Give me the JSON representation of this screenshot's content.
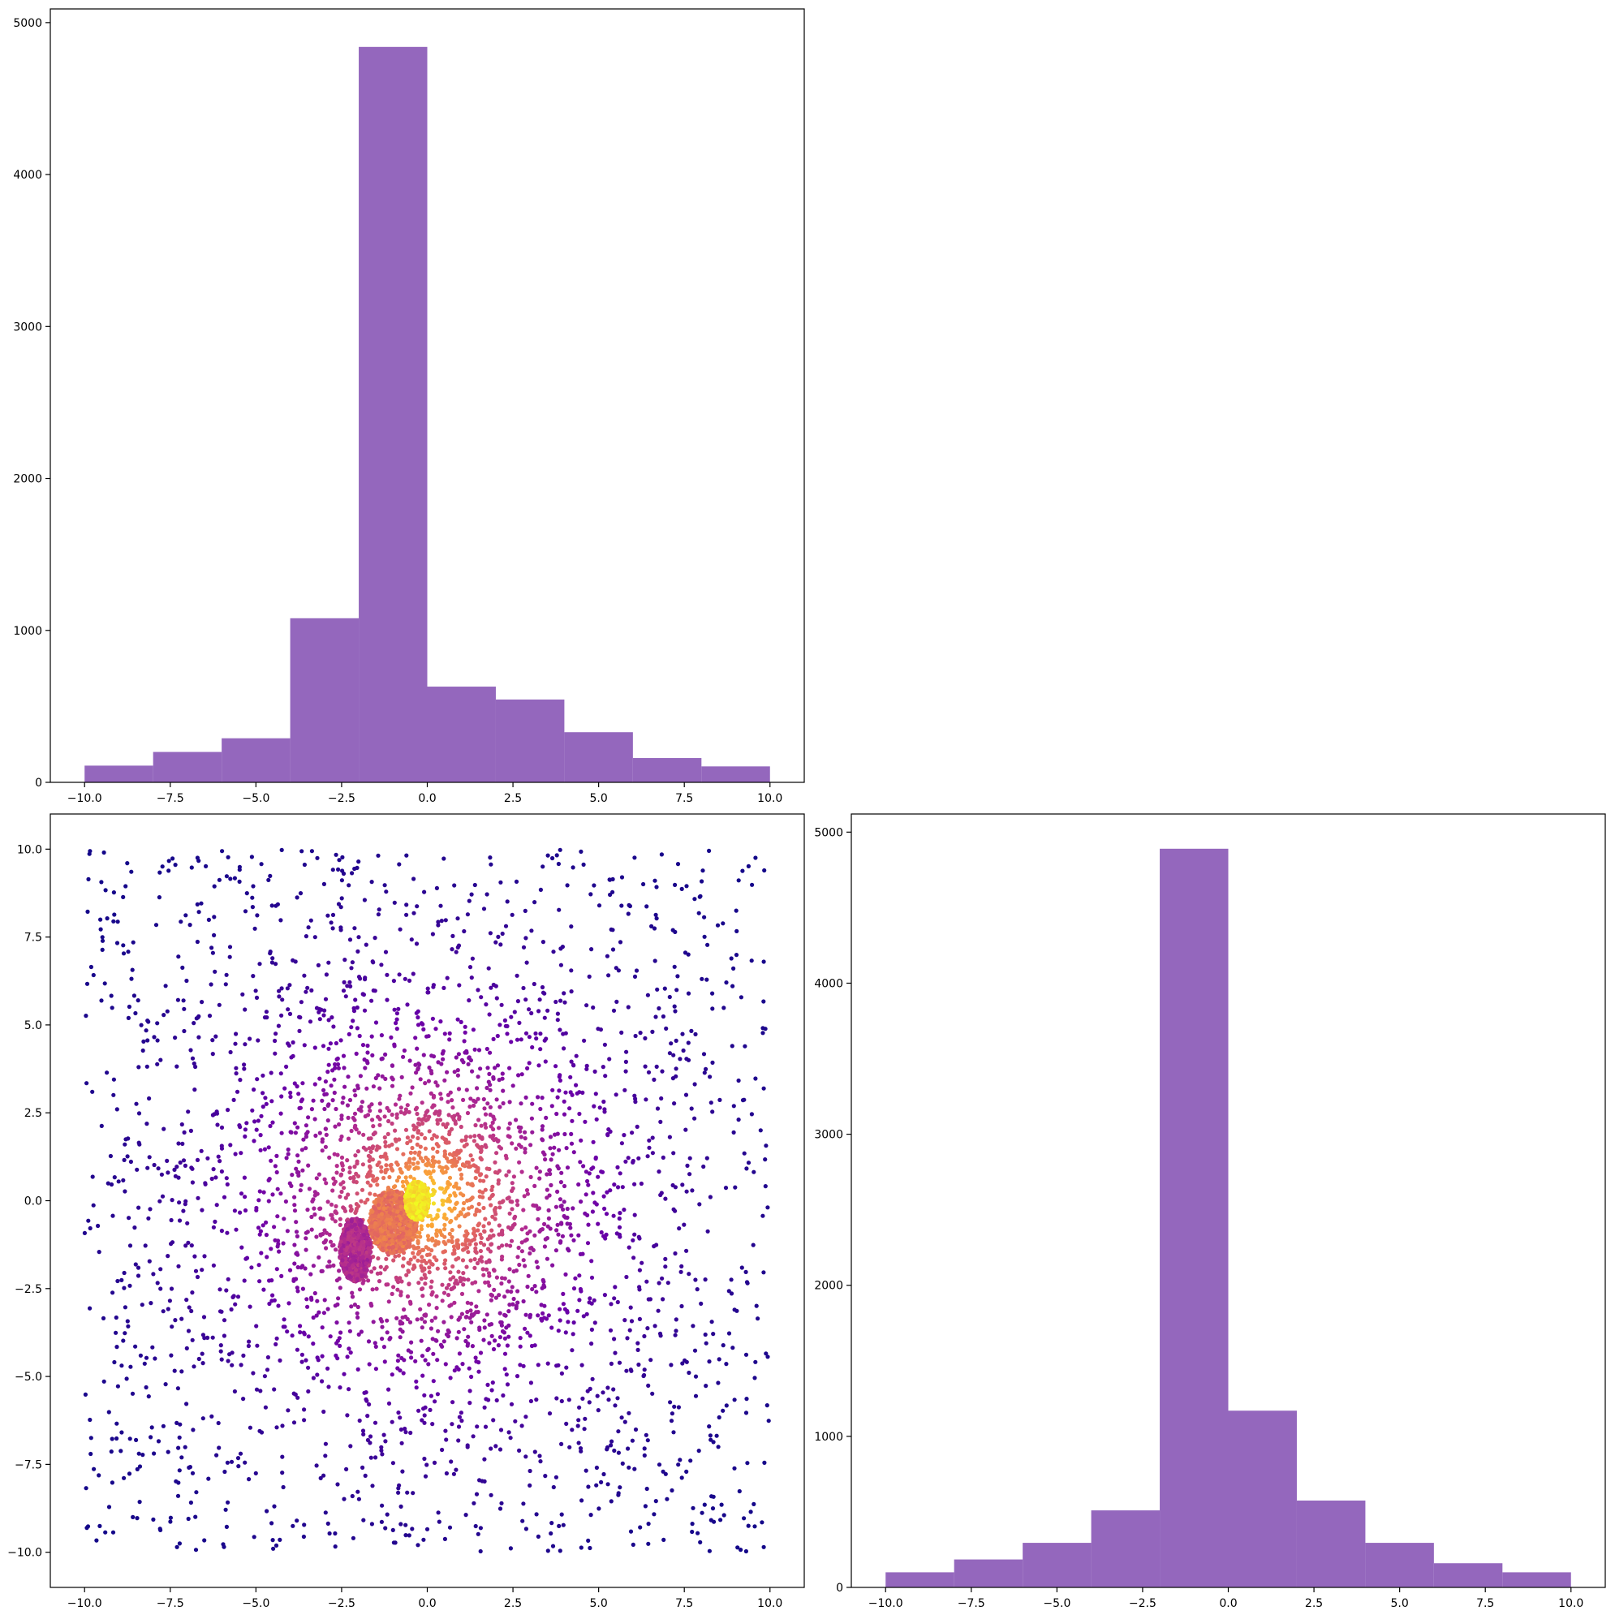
{
  "chart_data": [
    {
      "panel": "top-left",
      "type": "bar",
      "title": "",
      "xlabel": "",
      "ylabel": "",
      "bin_edges": [
        -10.0,
        -8.0,
        -6.0,
        -4.0,
        -2.0,
        0.0,
        2.0,
        4.0,
        6.0,
        8.0,
        10.0
      ],
      "values": [
        110,
        200,
        290,
        1080,
        4840,
        630,
        545,
        330,
        160,
        105
      ],
      "xlim": [
        -11.0,
        11.0
      ],
      "ylim": [
        0,
        5090
      ],
      "xticks": [
        "−10.0",
        "−7.5",
        "−5.0",
        "−2.5",
        "0.0",
        "2.5",
        "5.0",
        "7.5",
        "10.0"
      ],
      "xtick_values": [
        -10.0,
        -7.5,
        -5.0,
        -2.5,
        0.0,
        2.5,
        5.0,
        7.5,
        10.0
      ],
      "yticks": [
        "0",
        "1000",
        "2000",
        "3000",
        "4000",
        "5000"
      ],
      "ytick_values": [
        0,
        1000,
        2000,
        3000,
        4000,
        5000
      ],
      "color": "#9467bd",
      "grid": false
    },
    {
      "panel": "bottom-left",
      "type": "scatter",
      "title": "",
      "xlabel": "",
      "ylabel": "",
      "xlim": [
        -11.0,
        11.0
      ],
      "ylim": [
        -11.0,
        11.0
      ],
      "xticks": [
        "−10.0",
        "−7.5",
        "−5.0",
        "−2.5",
        "0.0",
        "2.5",
        "5.0",
        "7.5",
        "10.0"
      ],
      "xtick_values": [
        -10.0,
        -7.5,
        -5.0,
        -2.5,
        0.0,
        2.5,
        5.0,
        7.5,
        10.0
      ],
      "yticks": [
        "−10.0",
        "−7.5",
        "−5.0",
        "−2.5",
        "0.0",
        "2.5",
        "5.0",
        "7.5",
        "10.0"
      ],
      "ytick_values": [
        -10.0,
        -7.5,
        -5.0,
        -2.5,
        0.0,
        2.5,
        5.0,
        7.5,
        10.0
      ],
      "colormap": "plasma",
      "colors": [
        "#0d0887",
        "#6a00a8",
        "#b12a90",
        "#e16462",
        "#fca636",
        "#f0f921"
      ],
      "point_count_approx": 10000,
      "background_extent": [
        -10.0,
        10.0
      ],
      "clusters": [
        {
          "center": [
            -2.1,
            -1.4
          ],
          "extent": [
            0.45,
            0.9
          ],
          "color_value": 0.4
        },
        {
          "center": [
            -1.0,
            -0.6
          ],
          "extent": [
            0.7,
            0.9
          ],
          "color_value": 0.65
        },
        {
          "center": [
            -0.3,
            0.0
          ],
          "extent": [
            0.35,
            0.55
          ],
          "color_value": 0.95
        }
      ],
      "grid": false
    },
    {
      "panel": "bottom-right",
      "type": "bar",
      "title": "",
      "xlabel": "",
      "ylabel": "",
      "bin_edges": [
        -10.0,
        -8.0,
        -6.0,
        -4.0,
        -2.0,
        0.0,
        2.0,
        4.0,
        6.0,
        8.0,
        10.0
      ],
      "values": [
        100,
        185,
        295,
        510,
        4890,
        1170,
        575,
        295,
        160,
        100
      ],
      "xlim": [
        -11.0,
        11.0
      ],
      "ylim": [
        0,
        5120
      ],
      "xticks": [
        "−10.0",
        "−7.5",
        "−5.0",
        "−2.5",
        "0.0",
        "2.5",
        "5.0",
        "7.5",
        "10.0"
      ],
      "xtick_values": [
        -10.0,
        -7.5,
        -5.0,
        -2.5,
        0.0,
        2.5,
        5.0,
        7.5,
        10.0
      ],
      "yticks": [
        "0",
        "1000",
        "2000",
        "3000",
        "4000",
        "5000"
      ],
      "ytick_values": [
        0,
        1000,
        2000,
        3000,
        4000,
        5000
      ],
      "color": "#9467bd",
      "grid": false
    }
  ]
}
